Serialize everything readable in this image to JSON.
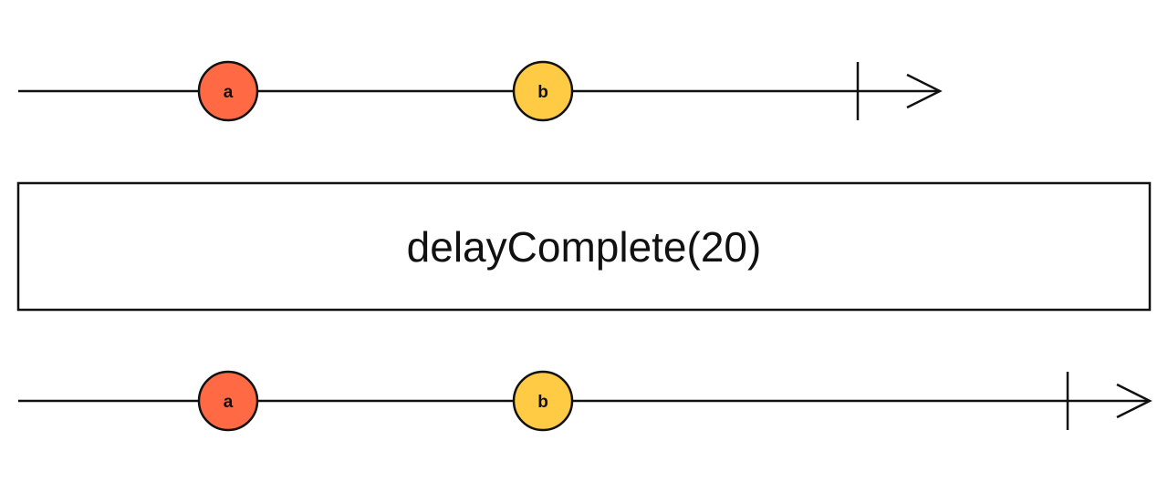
{
  "input_timeline": {
    "events": [
      {
        "label": "a",
        "color": "#ff6a44"
      },
      {
        "label": "b",
        "color": "#ffcb44"
      }
    ],
    "completes": true
  },
  "operator": {
    "label": "delayComplete(20)"
  },
  "output_timeline": {
    "events": [
      {
        "label": "a",
        "color": "#ff6a44"
      },
      {
        "label": "b",
        "color": "#ffcb44"
      }
    ],
    "completes": true
  }
}
